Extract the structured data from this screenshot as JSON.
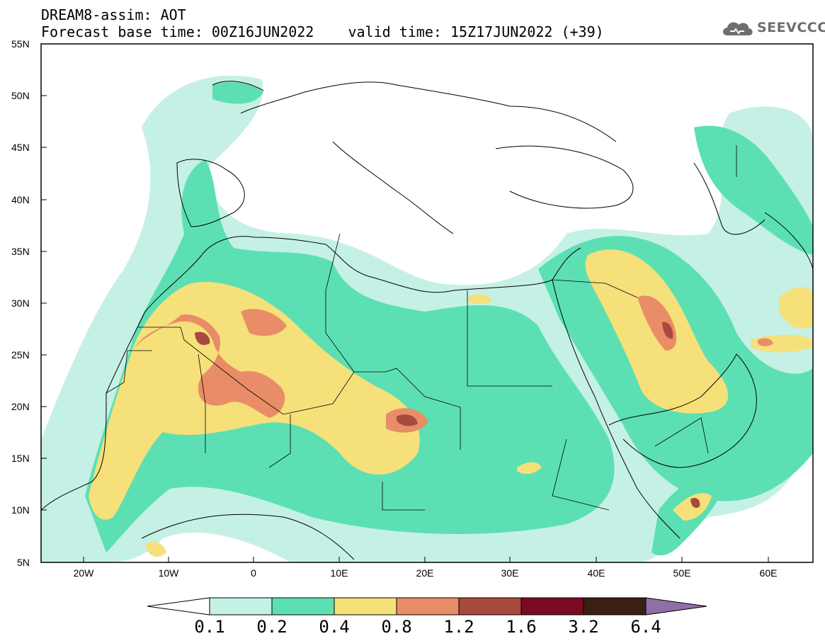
{
  "header": {
    "line1": "DREAM8-assim: AOT",
    "line2": "Forecast base time: 00Z16JUN2022    valid time: 15Z17JUN2022 (+39)"
  },
  "logo": {
    "text": "SEEVCCC",
    "icon": "cloud-icon"
  },
  "map": {
    "lat_range": [
      5,
      55
    ],
    "lon_range": [
      -25,
      65
    ],
    "lat_labels": [
      "55N",
      "50N",
      "45N",
      "40N",
      "35N",
      "30N",
      "25N",
      "20N",
      "15N",
      "10N",
      "5N"
    ],
    "lon_labels": [
      "20W",
      "10W",
      "0",
      "10E",
      "20E",
      "30E",
      "40E",
      "50E",
      "60E"
    ]
  },
  "colorbar": {
    "labels": [
      "0.1",
      "0.2",
      "0.4",
      "0.8",
      "1.2",
      "1.6",
      "3.2",
      "6.4"
    ],
    "colors": [
      "#ffffff",
      "#c5f0e6",
      "#5ce0b3",
      "#f5e07a",
      "#e98c68",
      "#a74a40",
      "#7a0b22",
      "#3a2010",
      "#8f6fa8"
    ]
  }
}
